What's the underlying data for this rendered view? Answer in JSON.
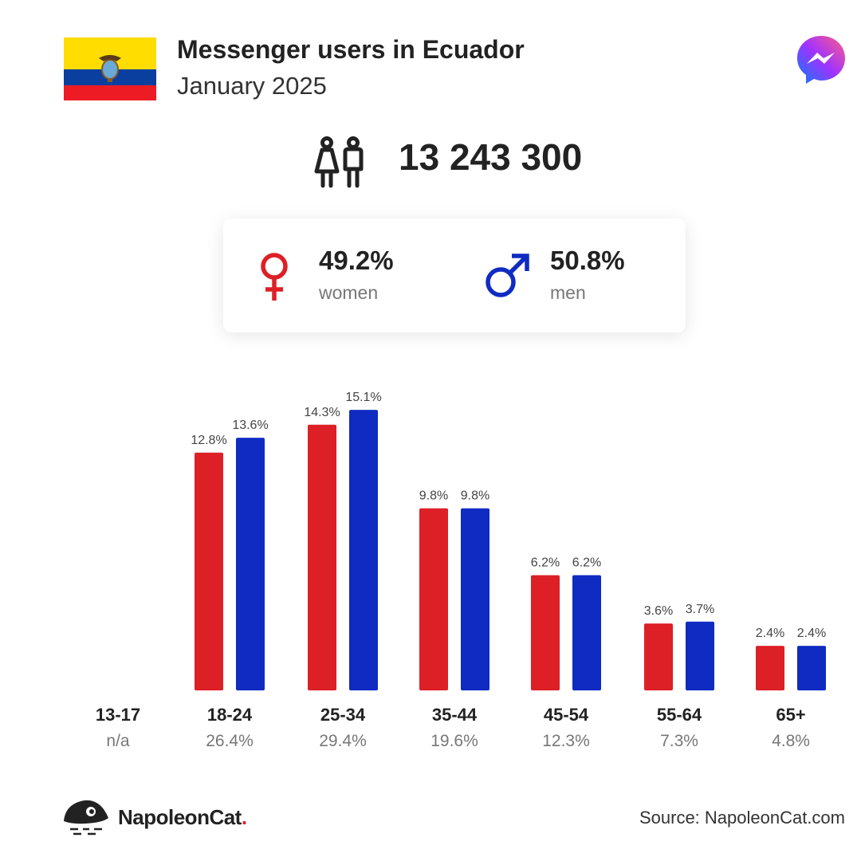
{
  "header": {
    "title": "Messenger users in Ecuador",
    "subtitle": "January 2025"
  },
  "total_users": "13 243 300",
  "gender": {
    "women": {
      "pct": "49.2%",
      "label": "women",
      "color": "#dd1f26"
    },
    "men": {
      "pct": "50.8%",
      "label": "men",
      "color": "#0f2bc2"
    }
  },
  "icons": {
    "flag": "ecuador-flag-icon",
    "app": "messenger-logo-icon",
    "users": "people-icon",
    "female": "female-symbol-icon",
    "male": "male-symbol-icon",
    "brand": "napoleoncat-logo-icon"
  },
  "chart_data": {
    "type": "bar",
    "categories": [
      "13-17",
      "18-24",
      "25-34",
      "35-44",
      "45-54",
      "55-64",
      "65+"
    ],
    "category_shares": [
      "n/a",
      "26.4%",
      "29.4%",
      "19.6%",
      "12.3%",
      "7.3%",
      "4.8%"
    ],
    "series": [
      {
        "name": "women",
        "color": "#dd1f26",
        "values": [
          null,
          12.8,
          14.3,
          9.8,
          6.2,
          3.6,
          2.4
        ],
        "labels": [
          "",
          "12.8%",
          "14.3%",
          "9.8%",
          "6.2%",
          "3.6%",
          "2.4%"
        ]
      },
      {
        "name": "men",
        "color": "#0f2bc2",
        "values": [
          null,
          13.6,
          15.1,
          9.8,
          6.2,
          3.7,
          2.4
        ],
        "labels": [
          "",
          "13.6%",
          "15.1%",
          "9.8%",
          "6.2%",
          "3.7%",
          "2.4%"
        ]
      }
    ],
    "grid": false,
    "legend": "none"
  },
  "footer": {
    "brand_name": "NapoleonCat",
    "brand_dot": ".",
    "source": "Source: NapoleonCat.com"
  }
}
